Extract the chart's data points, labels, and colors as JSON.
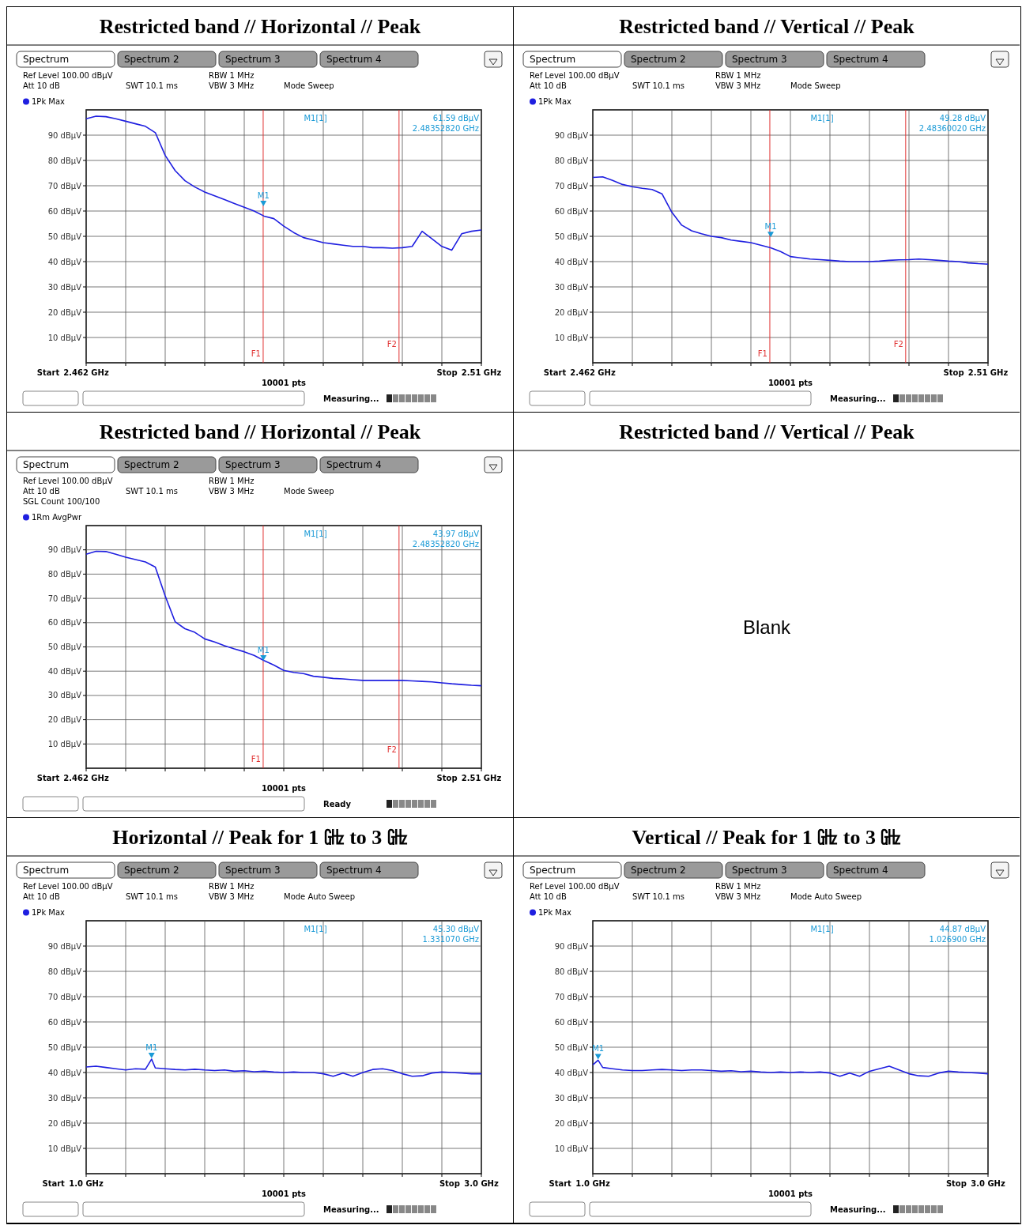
{
  "chart_data": [
    {
      "type": "line",
      "title": "Restricted band // Horizontal // Peak",
      "xlim": [
        2.462,
        2.51
      ],
      "ylim": [
        0,
        100
      ],
      "grid": true,
      "legend": "top left",
      "x": [
        2.462,
        2.4632,
        2.4644,
        2.4656,
        2.4668,
        2.468,
        2.4692,
        2.4704,
        2.4716,
        2.4728,
        2.474,
        2.4752,
        2.4764,
        2.4776,
        2.4788,
        2.48,
        2.4812,
        2.4824,
        2.4836,
        2.4848,
        2.486,
        2.4872,
        2.4884,
        2.4896,
        2.4908,
        2.492,
        2.4932,
        2.4944,
        2.4956,
        2.4968,
        2.498,
        2.4992,
        2.5004,
        2.5016,
        2.5028,
        2.504,
        2.5052,
        2.5064,
        2.5076,
        2.5088,
        2.51
      ],
      "xticks": [
        {
          "value": 2.462,
          "label": "2.462 GHz"
        },
        {
          "value": 2.4668,
          "label": null
        },
        {
          "value": 2.4716,
          "label": null
        },
        {
          "value": 2.4764,
          "label": null
        },
        {
          "value": 2.4812,
          "label": null
        },
        {
          "value": 2.486,
          "label": null
        },
        {
          "value": 2.4908,
          "label": null
        },
        {
          "value": 2.4956,
          "label": null
        },
        {
          "value": 2.5004,
          "label": null
        },
        {
          "value": 2.5052,
          "label": null
        },
        {
          "value": 2.51,
          "label": "2.51 GHz"
        }
      ],
      "yticks": [
        {
          "value": 10,
          "label": "10 dBµV"
        },
        {
          "value": 20,
          "label": "20 dBµV"
        },
        {
          "value": 30,
          "label": "30 dBµV"
        },
        {
          "value": 40,
          "label": "40 dBµV"
        },
        {
          "value": 50,
          "label": "50 dBµV"
        },
        {
          "value": 60,
          "label": "60 dBµV"
        },
        {
          "value": 70,
          "label": "70 dBµV"
        },
        {
          "value": 80,
          "label": "80 dBµV"
        },
        {
          "value": 90,
          "label": "90 dBµV"
        }
      ],
      "series": [
        {
          "name": "1Pk Max",
          "color": "#1f1fe0",
          "values": [
            96.5,
            97.5,
            97.3,
            96.5,
            95.5,
            94.5,
            93.5,
            91,
            82,
            76,
            72,
            69.5,
            67.5,
            66,
            64.5,
            63,
            61.5,
            60,
            58,
            57,
            54,
            51.5,
            49.5,
            48.5,
            47.5,
            47,
            46.5,
            46,
            46,
            45.5,
            45.5,
            45.3,
            45.5,
            46,
            52,
            49,
            46,
            44.5,
            51,
            52,
            52.5
          ]
        }
      ],
      "ref_lines": [
        {
          "axis": "x",
          "value": 2.4835,
          "label": "F1",
          "color": "#e03030"
        },
        {
          "axis": "x",
          "value": 2.5,
          "label": "F2",
          "color": "#e03030"
        }
      ],
      "annotations": [
        "Spectrum",
        "Spectrum 2",
        "Spectrum 3",
        "Spectrum 4",
        "Ref Level 100.00 dBµV",
        "Att 10 dB",
        "SWT 10.1 ms",
        "RBW 1 MHz",
        "VBW 3 MHz",
        "Mode Sweep",
        "M1[1]",
        "61.59 dBµV",
        "2.48352820 GHz",
        "Start",
        "Stop",
        "Measuring...",
        "10001 pts",
        {
          "text": "M1",
          "x": 2.4835282,
          "y": 61.59
        }
      ]
    },
    {
      "type": "line",
      "title": "Restricted band // Vertical // Peak",
      "xlim": [
        2.462,
        2.51
      ],
      "ylim": [
        0,
        100
      ],
      "grid": true,
      "legend": "top left",
      "x": [
        2.462,
        2.4632,
        2.4644,
        2.4656,
        2.4668,
        2.468,
        2.4692,
        2.4704,
        2.4716,
        2.4728,
        2.474,
        2.4752,
        2.4764,
        2.4776,
        2.4788,
        2.48,
        2.4812,
        2.4824,
        2.4836,
        2.4848,
        2.486,
        2.4872,
        2.4884,
        2.4896,
        2.4908,
        2.492,
        2.4932,
        2.4944,
        2.4956,
        2.4968,
        2.498,
        2.4992,
        2.5004,
        2.5016,
        2.5028,
        2.504,
        2.5052,
        2.5064,
        2.5076,
        2.5088,
        2.51
      ],
      "xticks": [
        {
          "value": 2.462,
          "label": "2.462 GHz"
        },
        {
          "value": 2.4668,
          "label": null
        },
        {
          "value": 2.4716,
          "label": null
        },
        {
          "value": 2.4764,
          "label": null
        },
        {
          "value": 2.4812,
          "label": null
        },
        {
          "value": 2.486,
          "label": null
        },
        {
          "value": 2.4908,
          "label": null
        },
        {
          "value": 2.4956,
          "label": null
        },
        {
          "value": 2.5004,
          "label": null
        },
        {
          "value": 2.5052,
          "label": null
        },
        {
          "value": 2.51,
          "label": "2.51 GHz"
        }
      ],
      "yticks": [
        {
          "value": 10,
          "label": "10 dBµV"
        },
        {
          "value": 20,
          "label": "20 dBµV"
        },
        {
          "value": 30,
          "label": "30 dBµV"
        },
        {
          "value": 40,
          "label": "40 dBµV"
        },
        {
          "value": 50,
          "label": "50 dBµV"
        },
        {
          "value": 60,
          "label": "60 dBµV"
        },
        {
          "value": 70,
          "label": "70 dBµV"
        },
        {
          "value": 80,
          "label": "80 dBµV"
        },
        {
          "value": 90,
          "label": "90 dBµV"
        }
      ],
      "series": [
        {
          "name": "1Pk Max",
          "color": "#1f1fe0",
          "values": [
            73.3,
            73.5,
            72.1,
            70.5,
            69.6,
            69,
            68.5,
            66.8,
            59.5,
            54.4,
            52.2,
            51,
            50,
            49.5,
            48.5,
            48,
            47.5,
            46.5,
            45.5,
            44,
            42,
            41.5,
            41,
            40.8,
            40.5,
            40.2,
            40,
            40,
            40,
            40.2,
            40.5,
            40.7,
            40.8,
            41,
            40.8,
            40.5,
            40.2,
            40,
            39.5,
            39.2,
            39
          ]
        }
      ],
      "ref_lines": [
        {
          "axis": "x",
          "value": 2.4835,
          "label": "F1",
          "color": "#e03030"
        },
        {
          "axis": "x",
          "value": 2.5,
          "label": "F2",
          "color": "#e03030"
        }
      ],
      "annotations": [
        "Spectrum",
        "Spectrum 2",
        "Spectrum 3",
        "Spectrum 4",
        "Ref Level 100.00 dBµV",
        "Att 10 dB",
        "SWT 10.1 ms",
        "RBW 1 MHz",
        "VBW 3 MHz",
        "Mode Sweep",
        "M1[1]",
        "49.28 dBµV",
        "2.48360020 GHz",
        "Start",
        "Stop",
        "Measuring...",
        "10001 pts",
        {
          "text": "M1",
          "x": 2.4836002,
          "y": 49.28
        }
      ]
    },
    {
      "type": "line",
      "title": "Restricted band // Horizontal // Peak",
      "xlim": [
        2.462,
        2.51
      ],
      "ylim": [
        0,
        100
      ],
      "grid": true,
      "legend": "top left",
      "x": [
        2.462,
        2.4632,
        2.4644,
        2.4656,
        2.4668,
        2.468,
        2.4692,
        2.4704,
        2.4716,
        2.4728,
        2.474,
        2.4752,
        2.4764,
        2.4776,
        2.4788,
        2.48,
        2.4812,
        2.4824,
        2.4836,
        2.4848,
        2.486,
        2.4872,
        2.4884,
        2.4896,
        2.4908,
        2.492,
        2.4932,
        2.4944,
        2.4956,
        2.4968,
        2.498,
        2.4992,
        2.5004,
        2.5016,
        2.5028,
        2.504,
        2.5052,
        2.5064,
        2.5076,
        2.5088,
        2.51
      ],
      "xticks": [
        {
          "value": 2.462,
          "label": "2.462 GHz"
        },
        {
          "value": 2.4668,
          "label": null
        },
        {
          "value": 2.4716,
          "label": null
        },
        {
          "value": 2.4764,
          "label": null
        },
        {
          "value": 2.4812,
          "label": null
        },
        {
          "value": 2.486,
          "label": null
        },
        {
          "value": 2.4908,
          "label": null
        },
        {
          "value": 2.4956,
          "label": null
        },
        {
          "value": 2.5004,
          "label": null
        },
        {
          "value": 2.5052,
          "label": null
        },
        {
          "value": 2.51,
          "label": "2.51 GHz"
        }
      ],
      "yticks": [
        {
          "value": 10,
          "label": "10 dBµV"
        },
        {
          "value": 20,
          "label": "20 dBµV"
        },
        {
          "value": 30,
          "label": "30 dBµV"
        },
        {
          "value": 40,
          "label": "40 dBµV"
        },
        {
          "value": 50,
          "label": "50 dBµV"
        },
        {
          "value": 60,
          "label": "60 dBµV"
        },
        {
          "value": 70,
          "label": "70 dBµV"
        },
        {
          "value": 80,
          "label": "80 dBµV"
        },
        {
          "value": 90,
          "label": "90 dBµV"
        }
      ],
      "series": [
        {
          "name": "1Rm AvgPwr",
          "color": "#1f1fe0",
          "values": [
            88.2,
            89.4,
            89.3,
            88.2,
            87,
            86,
            85,
            82.9,
            71,
            60.4,
            57.5,
            56,
            53.3,
            52,
            50.5,
            49.2,
            48,
            46.5,
            44.4,
            42.5,
            40.3,
            39.5,
            39,
            37.9,
            37.5,
            37,
            36.8,
            36.5,
            36.2,
            36.2,
            36.2,
            36.2,
            36.2,
            36,
            35.8,
            35.6,
            35.2,
            34.8,
            34.5,
            34.2,
            34
          ]
        }
      ],
      "ref_lines": [
        {
          "axis": "x",
          "value": 2.4835,
          "label": "F1",
          "color": "#e03030"
        },
        {
          "axis": "x",
          "value": 2.5,
          "label": "F2",
          "color": "#e03030"
        }
      ],
      "annotations": [
        "Spectrum",
        "Spectrum 2",
        "Spectrum 3",
        "Spectrum 4",
        "Ref Level 100.00 dBµV",
        "Att 10 dB",
        "SWT 10.1 ms",
        "RBW 1 MHz",
        "VBW 3 MHz",
        "Mode Sweep",
        "M1[1]",
        "43.97 dBµV",
        "2.48352820 GHz",
        "Start",
        "Stop",
        "Ready",
        "10001 pts",
        "SGL Count 100/100",
        {
          "text": "M1",
          "x": 2.4835282,
          "y": 43.97
        }
      ]
    },
    {
      "type": "other",
      "title": "Restricted band // Vertical // Peak",
      "annotations": [
        "Blank"
      ]
    },
    {
      "type": "line",
      "title": "Horizontal // Peak for 1 ㎓ to 3 ㎓",
      "xlim": [
        1,
        3
      ],
      "ylim": [
        0,
        100
      ],
      "grid": true,
      "legend": "top left",
      "x": [
        1,
        1.05,
        1.1,
        1.15,
        1.2,
        1.25,
        1.3,
        1.33107,
        1.35,
        1.4,
        1.45,
        1.5,
        1.55,
        1.6,
        1.65,
        1.7,
        1.75,
        1.8,
        1.85,
        1.9,
        1.95,
        2,
        2.05,
        2.1,
        2.15,
        2.2,
        2.25,
        2.3,
        2.35,
        2.4,
        2.45,
        2.5,
        2.55,
        2.6,
        2.65,
        2.7,
        2.75,
        2.8,
        2.85,
        2.9,
        2.95,
        3
      ],
      "xticks": [
        {
          "value": 1,
          "label": "1.0 GHz"
        },
        {
          "value": 1.2,
          "label": null
        },
        {
          "value": 1.4,
          "label": null
        },
        {
          "value": 1.6,
          "label": null
        },
        {
          "value": 1.8,
          "label": null
        },
        {
          "value": 2,
          "label": null
        },
        {
          "value": 2.2,
          "label": null
        },
        {
          "value": 2.4,
          "label": null
        },
        {
          "value": 2.6,
          "label": null
        },
        {
          "value": 2.8,
          "label": null
        },
        {
          "value": 3,
          "label": "3.0 GHz"
        }
      ],
      "yticks": [
        {
          "value": 10,
          "label": "10 dBµV"
        },
        {
          "value": 20,
          "label": "20 dBµV"
        },
        {
          "value": 30,
          "label": "30 dBµV"
        },
        {
          "value": 40,
          "label": "40 dBµV"
        },
        {
          "value": 50,
          "label": "50 dBµV"
        },
        {
          "value": 60,
          "label": "60 dBµV"
        },
        {
          "value": 70,
          "label": "70 dBµV"
        },
        {
          "value": 80,
          "label": "80 dBµV"
        },
        {
          "value": 90,
          "label": "90 dBµV"
        }
      ],
      "series": [
        {
          "name": "1Pk Max",
          "color": "#1f1fe0",
          "values": [
            42.2,
            42.5,
            42,
            41.5,
            41,
            41.5,
            41.3,
            45.3,
            41.8,
            41.5,
            41.2,
            41,
            41.3,
            41,
            40.8,
            41,
            40.5,
            40.7,
            40.3,
            40.5,
            40.2,
            40,
            40.2,
            40,
            40,
            39.5,
            38.5,
            39.8,
            38.5,
            40,
            41.2,
            41.5,
            40.8,
            39.5,
            38.5,
            38.7,
            39.8,
            40.2,
            40,
            39.8,
            39.5,
            39.5
          ]
        }
      ],
      "annotations": [
        "Spectrum",
        "Spectrum 2",
        "Spectrum 3",
        "Spectrum 4",
        "Ref Level 100.00 dBµV",
        "Att 10 dB",
        "SWT 10.1 ms",
        "RBW 1 MHz",
        "VBW 3 MHz",
        "Mode Auto Sweep",
        "M1[1]",
        "45.30 dBµV",
        "1.331070 GHz",
        "Start",
        "Stop",
        "Measuring...",
        "10001 pts",
        {
          "text": "M1",
          "x": 1.33107,
          "y": 45.3
        }
      ]
    },
    {
      "type": "line",
      "title": "Vertical // Peak for 1 ㎓ to 3 ㎓",
      "xlim": [
        1,
        3
      ],
      "ylim": [
        0,
        100
      ],
      "grid": true,
      "legend": "top left",
      "x": [
        1,
        1.0269,
        1.05,
        1.1,
        1.15,
        1.2,
        1.25,
        1.3,
        1.35,
        1.4,
        1.45,
        1.5,
        1.55,
        1.6,
        1.65,
        1.7,
        1.75,
        1.8,
        1.85,
        1.9,
        1.95,
        2,
        2.05,
        2.1,
        2.15,
        2.2,
        2.25,
        2.3,
        2.35,
        2.4,
        2.45,
        2.5,
        2.55,
        2.6,
        2.65,
        2.7,
        2.75,
        2.8,
        2.85,
        2.9,
        2.95,
        3
      ],
      "xticks": [
        {
          "value": 1,
          "label": "1.0 GHz"
        },
        {
          "value": 1.2,
          "label": null
        },
        {
          "value": 1.4,
          "label": null
        },
        {
          "value": 1.6,
          "label": null
        },
        {
          "value": 1.8,
          "label": null
        },
        {
          "value": 2,
          "label": null
        },
        {
          "value": 2.2,
          "label": null
        },
        {
          "value": 2.4,
          "label": null
        },
        {
          "value": 2.6,
          "label": null
        },
        {
          "value": 2.8,
          "label": null
        },
        {
          "value": 3,
          "label": "3.0 GHz"
        }
      ],
      "yticks": [
        {
          "value": 10,
          "label": "10 dBµV"
        },
        {
          "value": 20,
          "label": "20 dBµV"
        },
        {
          "value": 30,
          "label": "30 dBµV"
        },
        {
          "value": 40,
          "label": "40 dBµV"
        },
        {
          "value": 50,
          "label": "50 dBµV"
        },
        {
          "value": 60,
          "label": "60 dBµV"
        },
        {
          "value": 70,
          "label": "70 dBµV"
        },
        {
          "value": 80,
          "label": "80 dBµV"
        },
        {
          "value": 90,
          "label": "90 dBµV"
        }
      ],
      "series": [
        {
          "name": "1Pk Max",
          "color": "#1f1fe0",
          "values": [
            43,
            44.87,
            42,
            41.5,
            41,
            40.8,
            40.8,
            41,
            41.2,
            41,
            40.8,
            41,
            41,
            40.8,
            40.5,
            40.7,
            40.3,
            40.5,
            40.2,
            40,
            40.2,
            40,
            40.2,
            40,
            40.2,
            39.8,
            38.5,
            39.8,
            38.5,
            40.5,
            41.5,
            42.5,
            41,
            39.5,
            38.7,
            38.5,
            39.8,
            40.5,
            40.2,
            40,
            39.8,
            39.5
          ]
        }
      ],
      "annotations": [
        "Spectrum",
        "Spectrum 2",
        "Spectrum 3",
        "Spectrum 4",
        "Ref Level 100.00 dBµV",
        "Att 10 dB",
        "SWT 10.1 ms",
        "RBW 1 MHz",
        "VBW 3 MHz",
        "Mode Auto Sweep",
        "M1[1]",
        "44.87 dBµV",
        "1.026900 GHz",
        "Start",
        "Stop",
        "Measuring...",
        "10001 pts",
        {
          "text": "M1",
          "x": 1.0269,
          "y": 44.87
        }
      ]
    }
  ]
}
